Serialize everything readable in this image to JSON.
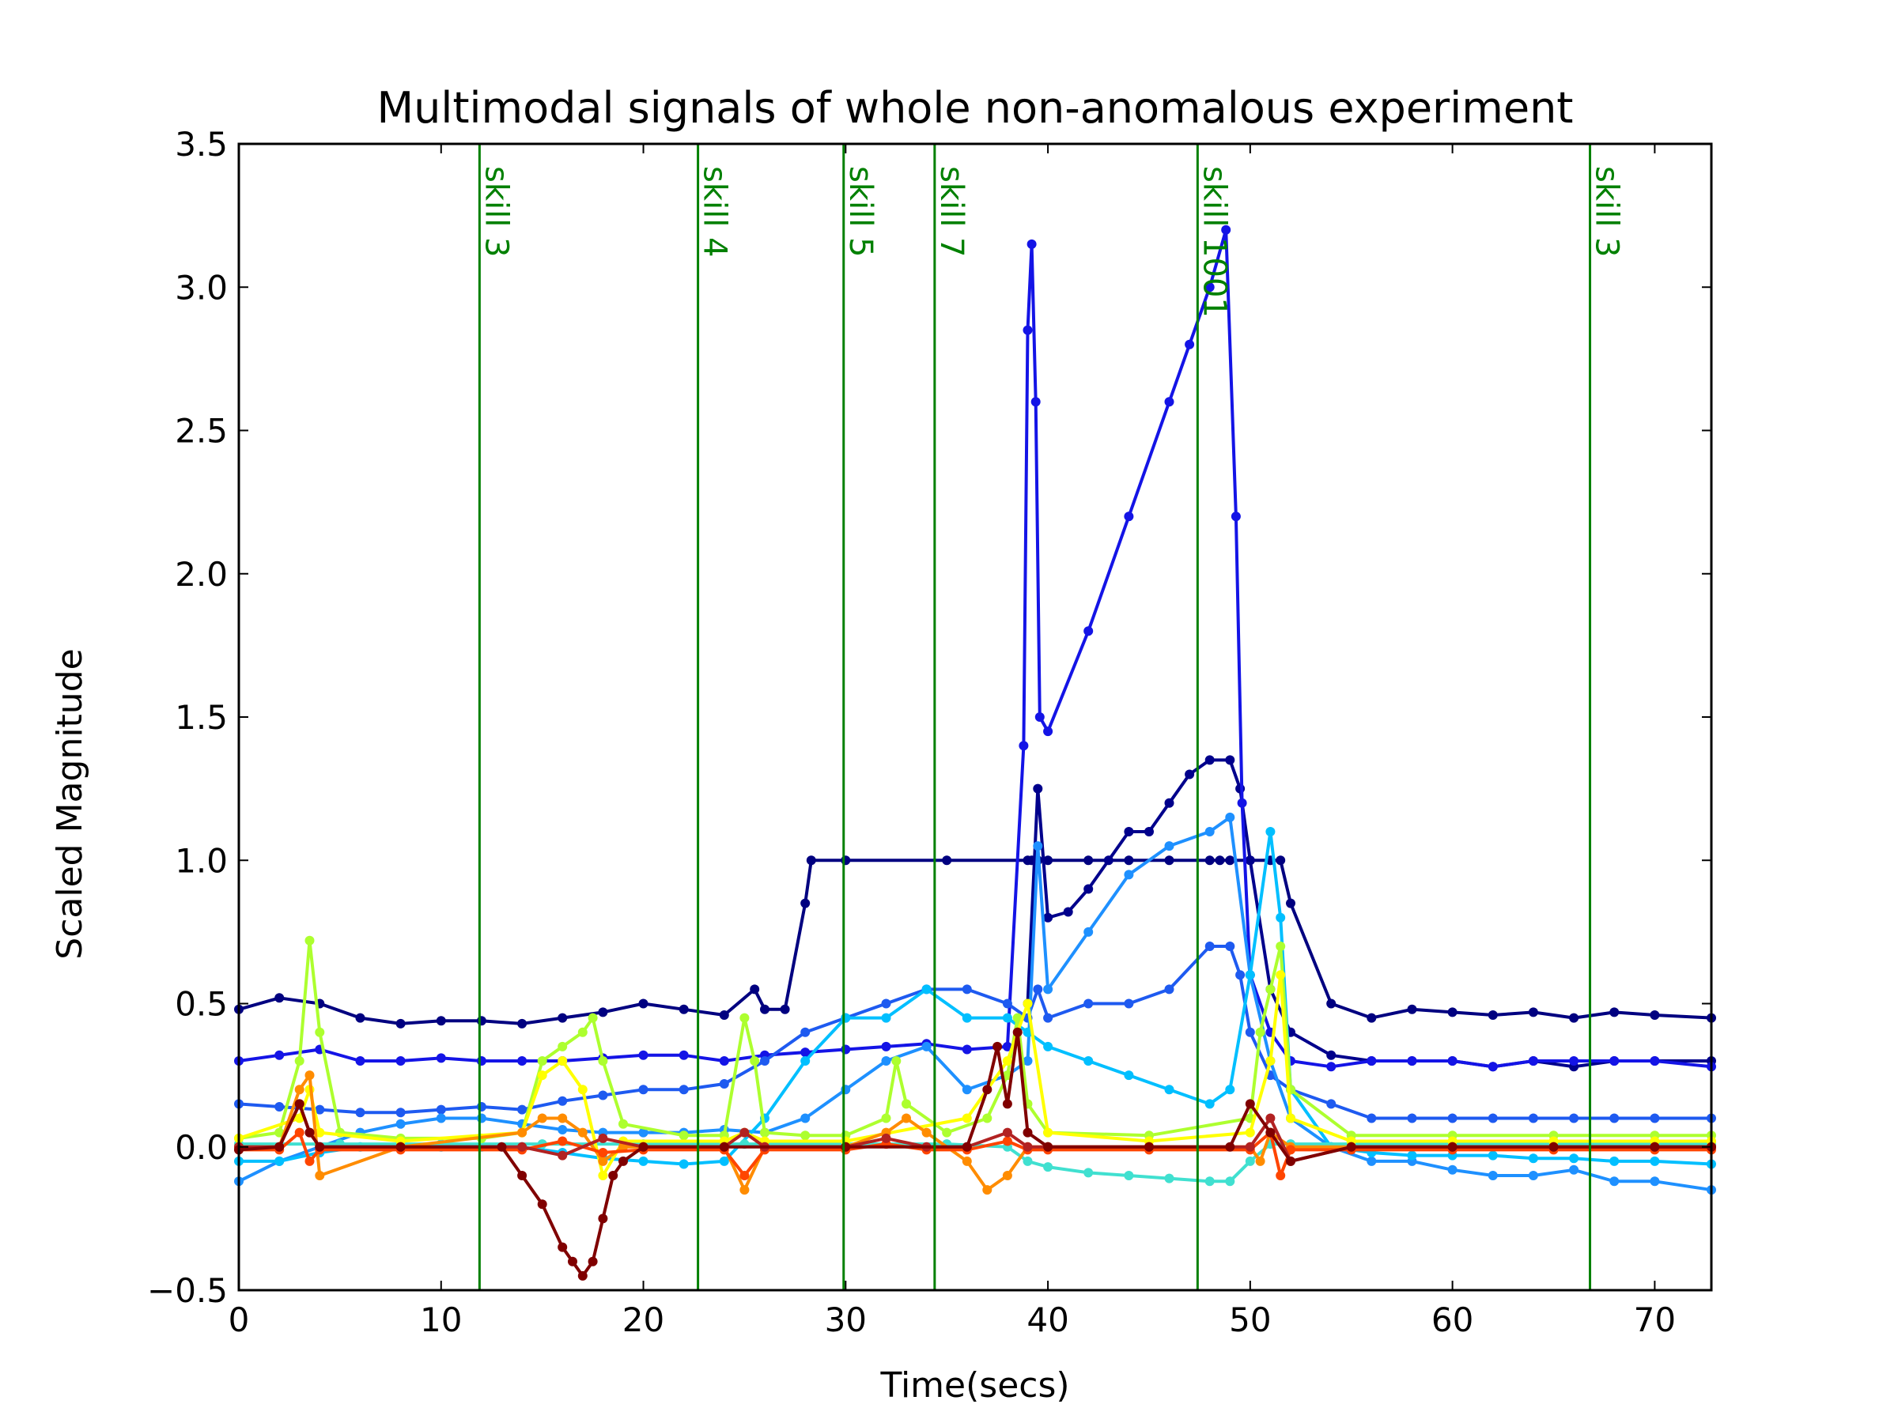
{
  "chart_data": {
    "type": "line",
    "title": "Multimodal signals of whole non-anomalous experiment",
    "xlabel": "Time(secs)",
    "ylabel": "Scaled Magnitude",
    "xlim": [
      0,
      72.8
    ],
    "ylim": [
      -0.5,
      3.5
    ],
    "xticks": [
      0,
      10,
      20,
      30,
      40,
      50,
      60,
      70
    ],
    "yticks": [
      -0.5,
      0.0,
      0.5,
      1.0,
      1.5,
      2.0,
      2.5,
      3.0,
      3.5
    ],
    "xtick_labels": [
      "0",
      "10",
      "20",
      "30",
      "40",
      "50",
      "60",
      "70"
    ],
    "ytick_labels": [
      "−0.5",
      "0.0",
      "0.5",
      "1.0",
      "1.5",
      "2.0",
      "2.5",
      "3.0",
      "3.5"
    ],
    "grid": false,
    "legend": "none",
    "skill_markers": [
      {
        "x": 11.9,
        "label": "skill 3"
      },
      {
        "x": 22.7,
        "label": "skill 4"
      },
      {
        "x": 29.9,
        "label": "skill 5"
      },
      {
        "x": 34.4,
        "label": "skill 7"
      },
      {
        "x": 47.4,
        "label": "skill 1001"
      },
      {
        "x": 66.8,
        "label": "skill 3"
      }
    ],
    "marker_color": "#008000",
    "series": [
      {
        "color": "#000080",
        "x": [
          0,
          2,
          4,
          6,
          8,
          10,
          12,
          14,
          16,
          18,
          20,
          22,
          24,
          25.5,
          26,
          27,
          28,
          28.3,
          30,
          35,
          39,
          39.2,
          39.5,
          40,
          42,
          44,
          46,
          48,
          48.5,
          49,
          50,
          51,
          51.5,
          52,
          54,
          56,
          58,
          60,
          62,
          64,
          66,
          68,
          70,
          72.8
        ],
        "y": [
          0.48,
          0.52,
          0.5,
          0.45,
          0.43,
          0.44,
          0.44,
          0.43,
          0.45,
          0.47,
          0.5,
          0.48,
          0.46,
          0.55,
          0.48,
          0.48,
          0.85,
          1.0,
          1.0,
          1.0,
          1.0,
          1.0,
          1.0,
          1.0,
          1.0,
          1.0,
          1.0,
          1.0,
          1.0,
          1.0,
          1.0,
          1.0,
          1.0,
          0.85,
          0.5,
          0.45,
          0.48,
          0.47,
          0.46,
          0.47,
          0.45,
          0.47,
          0.46,
          0.45
        ]
      },
      {
        "color": "#00008c",
        "x": [
          39,
          39.5,
          40,
          41,
          42,
          43,
          44,
          45,
          46,
          47,
          48,
          49,
          49.5,
          50,
          51,
          52,
          54,
          56,
          58,
          60,
          62,
          64,
          66,
          68,
          70,
          72.8
        ],
        "y": [
          0.5,
          1.25,
          0.8,
          0.82,
          0.9,
          1.0,
          1.1,
          1.1,
          1.2,
          1.3,
          1.35,
          1.35,
          1.25,
          1.0,
          0.55,
          0.4,
          0.32,
          0.3,
          0.3,
          0.3,
          0.28,
          0.3,
          0.28,
          0.3,
          0.3,
          0.3
        ]
      },
      {
        "color": "#1414e6",
        "x": [
          0,
          2,
          4,
          6,
          8,
          10,
          12,
          14,
          16,
          18,
          20,
          22,
          24,
          26,
          28,
          30,
          32,
          34,
          36,
          38,
          38.8,
          39,
          39.2,
          39.4,
          39.6,
          40,
          42,
          44,
          46,
          47,
          48,
          48.8,
          49.3,
          49.6,
          50,
          51,
          52,
          54,
          56,
          58,
          60,
          62,
          64,
          66,
          68,
          70,
          72.8
        ],
        "y": [
          0.3,
          0.32,
          0.34,
          0.3,
          0.3,
          0.31,
          0.3,
          0.3,
          0.3,
          0.31,
          0.32,
          0.32,
          0.3,
          0.32,
          0.33,
          0.34,
          0.35,
          0.36,
          0.34,
          0.35,
          1.4,
          2.85,
          3.15,
          2.6,
          1.5,
          1.45,
          1.8,
          2.2,
          2.6,
          2.8,
          3.0,
          3.2,
          2.2,
          1.2,
          0.6,
          0.4,
          0.3,
          0.28,
          0.3,
          0.3,
          0.3,
          0.28,
          0.3,
          0.3,
          0.3,
          0.3,
          0.28
        ]
      },
      {
        "color": "#1e5af0",
        "x": [
          0,
          2,
          4,
          6,
          8,
          10,
          12,
          14,
          16,
          18,
          20,
          22,
          24,
          26,
          28,
          30,
          32,
          34,
          36,
          38,
          39,
          39.5,
          40,
          42,
          44,
          46,
          48,
          49,
          49.5,
          50,
          51,
          52,
          54,
          56,
          58,
          60,
          62,
          64,
          66,
          68,
          70,
          72.8
        ],
        "y": [
          0.15,
          0.14,
          0.13,
          0.12,
          0.12,
          0.13,
          0.14,
          0.13,
          0.16,
          0.18,
          0.2,
          0.2,
          0.22,
          0.3,
          0.4,
          0.45,
          0.5,
          0.55,
          0.55,
          0.5,
          0.45,
          0.55,
          0.45,
          0.5,
          0.5,
          0.55,
          0.7,
          0.7,
          0.6,
          0.4,
          0.25,
          0.2,
          0.15,
          0.1,
          0.1,
          0.1,
          0.1,
          0.1,
          0.1,
          0.1,
          0.1,
          0.1
        ]
      },
      {
        "color": "#1e90ff",
        "x": [
          0,
          2,
          4,
          6,
          8,
          10,
          12,
          14,
          16,
          18,
          20,
          22,
          24,
          26,
          28,
          30,
          32,
          34,
          36,
          38,
          39,
          39.5,
          40,
          42,
          44,
          46,
          48,
          49,
          50,
          51,
          52,
          54,
          56,
          58,
          60,
          62,
          64,
          66,
          68,
          70,
          72.8
        ],
        "y": [
          -0.12,
          -0.05,
          0.0,
          0.05,
          0.08,
          0.1,
          0.1,
          0.08,
          0.06,
          0.05,
          0.05,
          0.05,
          0.06,
          0.05,
          0.1,
          0.2,
          0.3,
          0.35,
          0.2,
          0.25,
          0.3,
          1.05,
          0.55,
          0.75,
          0.95,
          1.05,
          1.1,
          1.15,
          0.6,
          0.3,
          0.1,
          0.0,
          -0.05,
          -0.05,
          -0.08,
          -0.1,
          -0.1,
          -0.08,
          -0.12,
          -0.12,
          -0.15
        ]
      },
      {
        "color": "#00bfff",
        "x": [
          0,
          2,
          4,
          6,
          8,
          10,
          12,
          14,
          16,
          18,
          20,
          22,
          24,
          26,
          28,
          30,
          32,
          34,
          36,
          38,
          39,
          40,
          42,
          44,
          46,
          48,
          49,
          50,
          51,
          51.5,
          52,
          54,
          56,
          58,
          60,
          62,
          64,
          66,
          68,
          70,
          72.8
        ],
        "y": [
          -0.05,
          -0.05,
          -0.02,
          0.0,
          0.0,
          0.0,
          0.0,
          0.0,
          -0.02,
          -0.04,
          -0.05,
          -0.06,
          -0.05,
          0.1,
          0.3,
          0.45,
          0.45,
          0.55,
          0.45,
          0.45,
          0.4,
          0.35,
          0.3,
          0.25,
          0.2,
          0.15,
          0.2,
          0.6,
          1.1,
          0.8,
          0.2,
          0.0,
          -0.02,
          -0.03,
          -0.03,
          -0.03,
          -0.04,
          -0.04,
          -0.05,
          -0.05,
          -0.06
        ]
      },
      {
        "color": "#40e0d0",
        "x": [
          0,
          5,
          10,
          15,
          20,
          25,
          30,
          35,
          38,
          39,
          40,
          42,
          44,
          46,
          48,
          49,
          50,
          51,
          52,
          55,
          60,
          65,
          70,
          72.8
        ],
        "y": [
          0.01,
          0.01,
          0.01,
          0.01,
          0.01,
          0.01,
          0.01,
          0.01,
          0.0,
          -0.05,
          -0.07,
          -0.09,
          -0.1,
          -0.11,
          -0.12,
          -0.12,
          -0.05,
          0.01,
          0.01,
          0.01,
          0.01,
          0.01,
          0.01,
          0.01
        ]
      },
      {
        "color": "#adff2f",
        "x": [
          0,
          2,
          3,
          3.5,
          4,
          5,
          8,
          12,
          14,
          15,
          16,
          17,
          17.5,
          18,
          19,
          22,
          24,
          25,
          25.5,
          26,
          28,
          30,
          32,
          32.5,
          33,
          35,
          37,
          38,
          38.5,
          39,
          40,
          45,
          50,
          50.5,
          51,
          51.5,
          52,
          55,
          60,
          65,
          70,
          72.8
        ],
        "y": [
          0.03,
          0.05,
          0.3,
          0.72,
          0.4,
          0.05,
          0.03,
          0.03,
          0.05,
          0.3,
          0.35,
          0.4,
          0.45,
          0.3,
          0.08,
          0.04,
          0.04,
          0.45,
          0.3,
          0.05,
          0.04,
          0.04,
          0.1,
          0.3,
          0.15,
          0.05,
          0.1,
          0.25,
          0.45,
          0.15,
          0.05,
          0.04,
          0.1,
          0.4,
          0.55,
          0.7,
          0.2,
          0.04,
          0.04,
          0.04,
          0.04,
          0.04
        ]
      },
      {
        "color": "#ffff00",
        "x": [
          0,
          3,
          3.5,
          4,
          8,
          14,
          15,
          16,
          17,
          18,
          19,
          24,
          25,
          26,
          30,
          36,
          38,
          39,
          40,
          45,
          50,
          51,
          51.5,
          52,
          55,
          60,
          65,
          70,
          72.8
        ],
        "y": [
          0.03,
          0.1,
          0.2,
          0.05,
          0.02,
          0.05,
          0.25,
          0.3,
          0.2,
          -0.1,
          0.02,
          0.02,
          0.05,
          0.02,
          0.02,
          0.1,
          0.3,
          0.5,
          0.05,
          0.02,
          0.05,
          0.3,
          0.6,
          0.1,
          0.02,
          0.02,
          0.02,
          0.02,
          0.02
        ]
      },
      {
        "color": "#ff8c00",
        "x": [
          0,
          2,
          3,
          3.5,
          4,
          8,
          14,
          15,
          16,
          17,
          18,
          19,
          24,
          25,
          26,
          30,
          32,
          33,
          34,
          36,
          37,
          38,
          39,
          40,
          45,
          50,
          50.5,
          51,
          52,
          55,
          60,
          65,
          70,
          72.8
        ],
        "y": [
          0.0,
          0.0,
          0.2,
          0.25,
          -0.1,
          0.0,
          0.05,
          0.1,
          0.1,
          0.05,
          -0.05,
          0.0,
          0.0,
          -0.15,
          0.0,
          0.0,
          0.05,
          0.1,
          0.05,
          -0.05,
          -0.15,
          -0.1,
          0.0,
          0.0,
          0.0,
          0.0,
          -0.05,
          0.05,
          0.0,
          0.0,
          0.0,
          0.0,
          0.0,
          0.0
        ]
      },
      {
        "color": "#ff4500",
        "x": [
          0,
          2,
          3,
          3.5,
          4,
          8,
          14,
          16,
          18,
          20,
          24,
          25,
          26,
          30,
          32,
          34,
          36,
          38,
          39,
          40,
          45,
          50,
          51,
          51.5,
          52,
          55,
          60,
          65,
          70,
          72.8
        ],
        "y": [
          -0.01,
          -0.01,
          0.05,
          -0.05,
          -0.01,
          -0.01,
          -0.01,
          0.02,
          -0.02,
          -0.01,
          -0.01,
          -0.1,
          -0.01,
          -0.01,
          0.01,
          -0.01,
          -0.01,
          0.02,
          -0.01,
          -0.01,
          -0.01,
          -0.01,
          0.05,
          -0.1,
          -0.01,
          -0.01,
          -0.01,
          -0.01,
          -0.01,
          -0.01
        ]
      },
      {
        "color": "#b22222",
        "x": [
          0,
          2,
          3,
          3.5,
          4,
          8,
          14,
          16,
          18,
          20,
          24,
          25,
          26,
          30,
          32,
          34,
          36,
          38,
          39,
          40,
          45,
          50,
          51,
          52,
          55,
          60,
          65,
          70,
          72.8
        ],
        "y": [
          0.0,
          0.0,
          0.15,
          0.05,
          0.0,
          0.0,
          0.0,
          -0.03,
          0.03,
          0.0,
          0.0,
          0.05,
          0.0,
          0.0,
          0.03,
          0.0,
          0.0,
          0.05,
          0.0,
          0.0,
          0.0,
          0.0,
          0.1,
          -0.05,
          0.0,
          0.0,
          0.0,
          0.0,
          0.0
        ]
      },
      {
        "color": "#800000",
        "x": [
          0,
          2,
          3,
          3.5,
          4,
          8,
          13,
          14,
          15,
          16,
          16.5,
          17,
          17.5,
          18,
          18.5,
          19,
          20,
          24,
          30,
          36,
          37,
          37.5,
          38,
          38.5,
          39,
          40,
          45,
          49,
          50,
          51,
          52,
          55,
          60,
          65,
          70,
          72.8
        ],
        "y": [
          -0.01,
          0.0,
          0.15,
          0.05,
          0.0,
          0.0,
          0.0,
          -0.1,
          -0.2,
          -0.35,
          -0.4,
          -0.45,
          -0.4,
          -0.25,
          -0.1,
          -0.05,
          0.0,
          0.0,
          0.0,
          0.0,
          0.2,
          0.35,
          0.15,
          0.4,
          0.05,
          0.0,
          0.0,
          0.0,
          0.15,
          0.05,
          -0.05,
          0.0,
          0.0,
          0.0,
          0.0,
          0.0
        ]
      }
    ]
  }
}
